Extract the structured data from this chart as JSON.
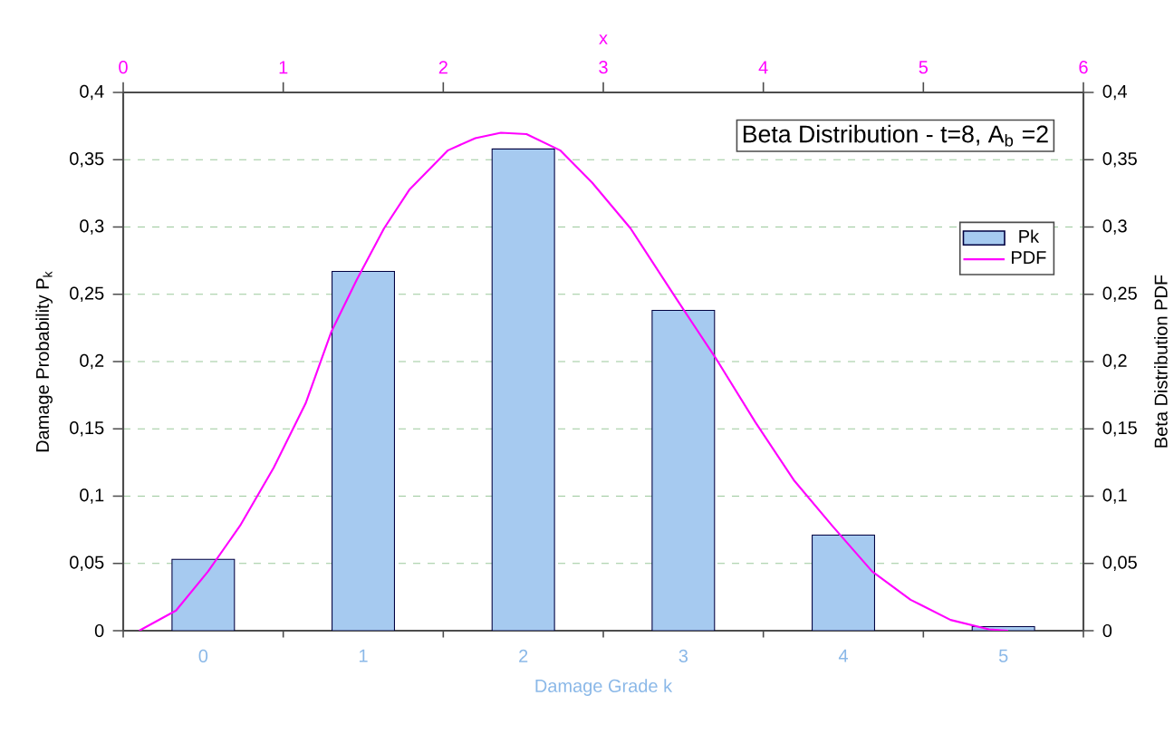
{
  "chart_data": {
    "type": "bar",
    "annotations": [
      "Beta Distribution - t=8, A$_{b}$ =2"
    ],
    "xlabel": "Damage Grade k",
    "ylabel": "Damage Probability P$_{k}$",
    "y2label": "Beta Distribution PDF",
    "x2label": "x",
    "x": [
      0,
      1,
      2,
      3,
      4,
      5
    ],
    "xlim": [
      -0.5,
      5.5
    ],
    "xticks": [
      0,
      1,
      2,
      3,
      4,
      5
    ],
    "series": [
      {
        "name": "Pk",
        "color": "#a6caf0",
        "values": [
          0.053,
          0.267,
          0.358,
          0.238,
          0.071,
          0.003
        ]
      },
      {
        "name": "PDF",
        "type": "line",
        "axis": "x2",
        "color": "#ff00ff",
        "x": [
          0.1,
          0.33,
          0.53,
          0.73,
          0.94,
          1.14,
          1.3,
          1.46,
          1.63,
          1.79,
          2.03,
          2.2,
          2.36,
          2.52,
          2.73,
          2.93,
          3.17,
          3.46,
          3.7,
          3.95,
          4.19,
          4.43,
          4.68,
          4.92,
          5.17,
          5.41,
          5.53
        ],
        "values": [
          0,
          0.015,
          0.044,
          0.078,
          0.121,
          0.169,
          0.222,
          0.261,
          0.299,
          0.328,
          0.357,
          0.366,
          0.37,
          0.369,
          0.357,
          0.333,
          0.299,
          0.246,
          0.203,
          0.155,
          0.112,
          0.078,
          0.044,
          0.023,
          0.008,
          0.001,
          0
        ]
      }
    ],
    "ylim": [
      0,
      0.4
    ],
    "yticks": [
      0,
      {
        "value": 0.05,
        "label": "0,05"
      },
      {
        "value": 0.1,
        "label": "0,1"
      },
      {
        "value": 0.15,
        "label": "0,15"
      },
      {
        "value": 0.2,
        "label": "0,2"
      },
      {
        "value": 0.25,
        "label": "0,25"
      },
      {
        "value": 0.3,
        "label": "0,3"
      },
      {
        "value": 0.35,
        "label": "0,35"
      },
      {
        "value": 0.4,
        "label": "0,4"
      }
    ],
    "y2lim": [
      0,
      0.4
    ],
    "y2ticks": [
      0,
      {
        "value": 0.05,
        "label": "0,05"
      },
      {
        "value": 0.1,
        "label": "0,1"
      },
      {
        "value": 0.15,
        "label": "0,15"
      },
      {
        "value": 0.2,
        "label": "0,2"
      },
      {
        "value": 0.25,
        "label": "0,25"
      },
      {
        "value": 0.3,
        "label": "0,3"
      },
      {
        "value": 0.35,
        "label": "0,35"
      },
      {
        "value": 0.4,
        "label": "0,4"
      }
    ],
    "x2lim": [
      0,
      6
    ],
    "x2ticks": [
      0,
      1,
      2,
      3,
      4,
      5,
      6
    ],
    "grid": "y",
    "legend": "top right"
  }
}
